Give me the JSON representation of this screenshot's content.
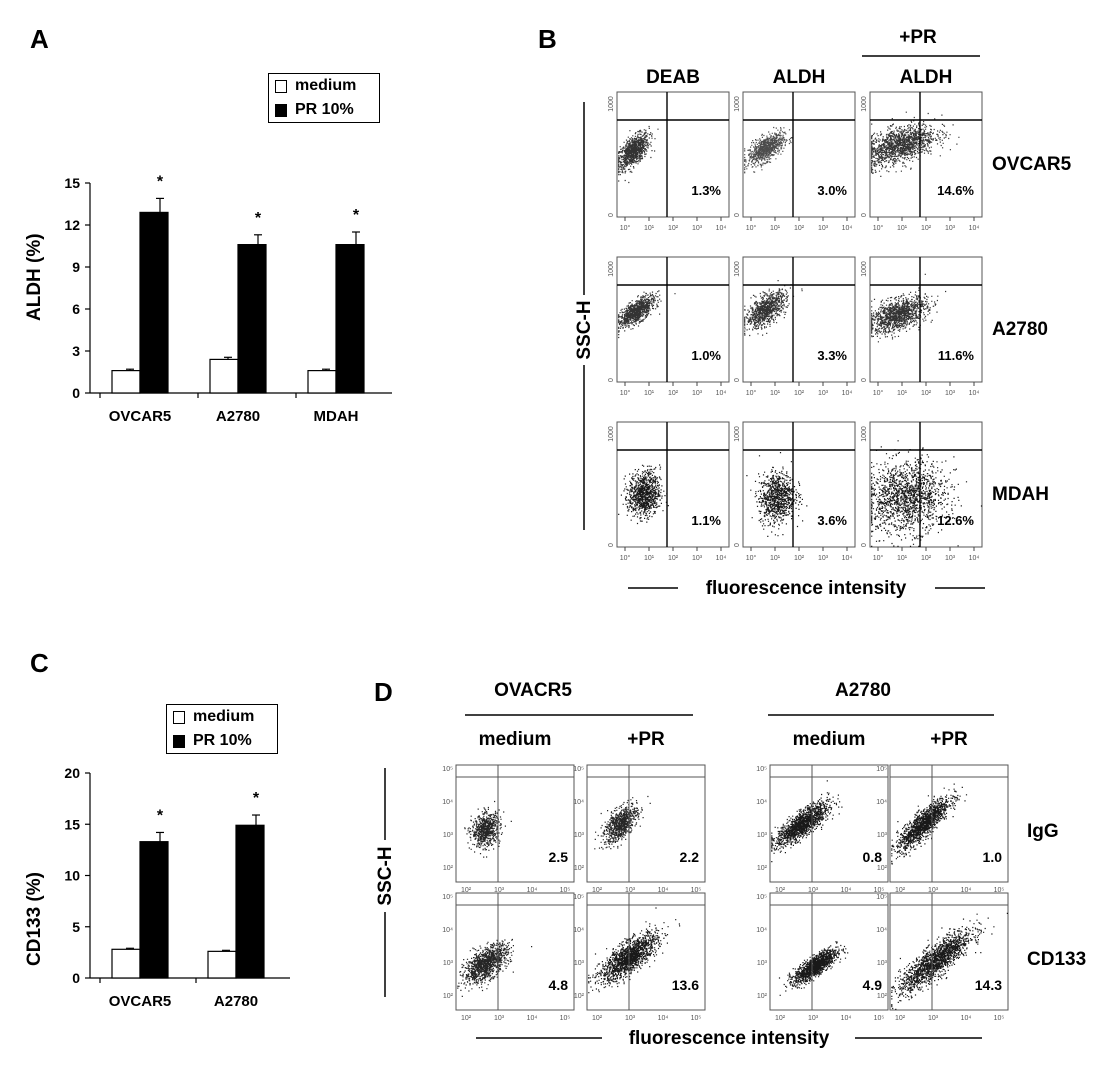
{
  "panels": {
    "A": "A",
    "B": "B",
    "C": "C",
    "D": "D"
  },
  "chart_data": [
    {
      "id": "A",
      "type": "bar",
      "categories": [
        "OVCAR5",
        "A2780",
        "MDAH"
      ],
      "series": [
        {
          "name": "medium",
          "values": [
            1.6,
            2.4,
            1.6
          ],
          "errors": [
            0.1,
            0.15,
            0.1
          ],
          "color": "#ffffff"
        },
        {
          "name": "PR 10%",
          "values": [
            12.9,
            10.6,
            10.6
          ],
          "errors": [
            1.0,
            0.7,
            0.9
          ],
          "color": "#000000"
        }
      ],
      "significance": [
        "*",
        "*",
        "*"
      ],
      "ylabel": "ALDH (%)",
      "ylim": [
        0,
        15
      ],
      "yticks": [
        "0",
        "3",
        "6",
        "9",
        "12",
        "15"
      ],
      "legend": [
        "medium",
        "PR 10%"
      ]
    },
    {
      "id": "C",
      "type": "bar",
      "categories": [
        "OVCAR5",
        "A2780"
      ],
      "series": [
        {
          "name": "medium",
          "values": [
            2.8,
            2.6
          ],
          "errors": [
            0.1,
            0.1
          ],
          "color": "#ffffff"
        },
        {
          "name": "PR 10%",
          "values": [
            13.3,
            14.9
          ],
          "errors": [
            0.9,
            1.0
          ],
          "color": "#000000"
        }
      ],
      "significance": [
        "*",
        "*"
      ],
      "ylabel": "CD133 (%)",
      "ylim": [
        0,
        20
      ],
      "yticks": [
        "0",
        "5",
        "10",
        "15",
        "20"
      ],
      "legend": [
        "medium",
        "PR 10%"
      ]
    },
    {
      "id": "B",
      "type": "scatter",
      "title_group": "+PR",
      "columns": [
        "DEAB",
        "ALDH",
        "ALDH"
      ],
      "rows": [
        "OVCAR5",
        "A2780",
        "MDAH"
      ],
      "percents": [
        [
          "1.3%",
          "3.0%",
          "14.6%"
        ],
        [
          "1.0%",
          "3.3%",
          "11.6%"
        ],
        [
          "1.1%",
          "3.6%",
          "12.6%"
        ]
      ],
      "ylabel": "SSC-H",
      "xlabel": "fluorescence intensity",
      "ytick_top": "1000",
      "ytick_bottom": "0",
      "xticks": [
        "10°",
        "10¹",
        "10²",
        "10³",
        "10⁴"
      ]
    },
    {
      "id": "D",
      "type": "scatter",
      "groups": [
        "OVACR5",
        "A2780"
      ],
      "columns": [
        "medium",
        "+PR",
        "medium",
        "+PR"
      ],
      "rows": [
        "IgG",
        "CD133"
      ],
      "values": [
        [
          "2.5",
          "2.2",
          "0.8",
          "1.0"
        ],
        [
          "4.8",
          "13.6",
          "4.9",
          "14.3"
        ]
      ],
      "ylabel": "SSC-H",
      "xlabel": "fluorescence intensity",
      "yticks": [
        "10⁵",
        "10⁴",
        "10³",
        "10²"
      ],
      "xticks": [
        "10²",
        "10³",
        "10⁴",
        "10⁵"
      ]
    }
  ]
}
